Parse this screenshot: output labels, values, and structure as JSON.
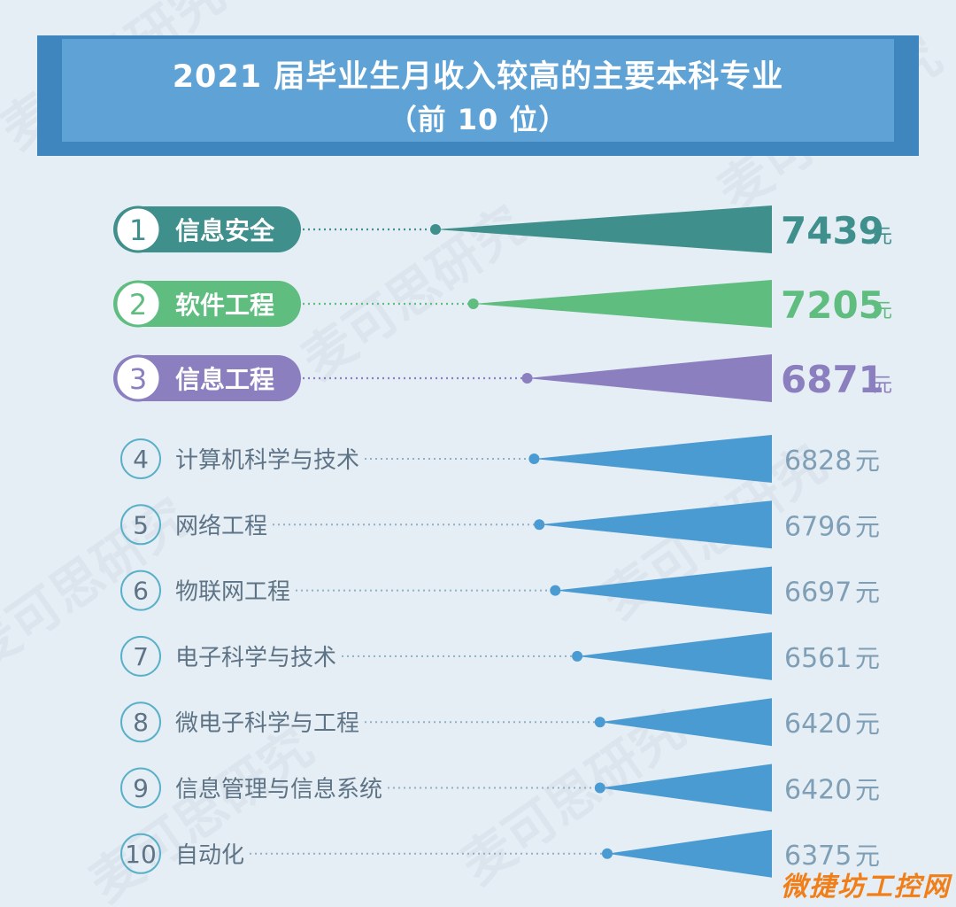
{
  "title": {
    "line1": "2021 届毕业生月收入较高的主要本科专业",
    "line2": "（前 10 位）"
  },
  "watermark": "麦可思研究",
  "site_mark": "微捷坊工控网",
  "colors": {
    "background": "#e6eef5",
    "banner_back": "#3f86bf",
    "banner_front": "#5fa3d6",
    "rank1": "#3f8f8c",
    "rank2": "#5fbd80",
    "rank3": "#8b7fc0",
    "rest": "#4a9bd2",
    "rest_text": "#5e7486",
    "rest_value": "#7f9fb6",
    "site_mark": "#f07f1a"
  },
  "chart_data": {
    "type": "bar",
    "unit": "元",
    "categories": [
      "信息安全",
      "软件工程",
      "信息工程",
      "计算机科学与技术",
      "网络工程",
      "物联网工程",
      "电子科学与技术",
      "微电子科学与工程",
      "信息管理与信息系统",
      "自动化"
    ],
    "ranks": [
      "1",
      "2",
      "3",
      "4",
      "5",
      "6",
      "7",
      "8",
      "9",
      "10"
    ],
    "values": [
      7439,
      7205,
      6871,
      6828,
      6796,
      6697,
      6561,
      6420,
      6420,
      6375
    ],
    "value_labels": [
      "7439",
      "7205",
      "6871",
      "6828",
      "6796",
      "6697",
      "6561",
      "6420",
      "6420",
      "6375"
    ],
    "highlighted_top": 3
  }
}
